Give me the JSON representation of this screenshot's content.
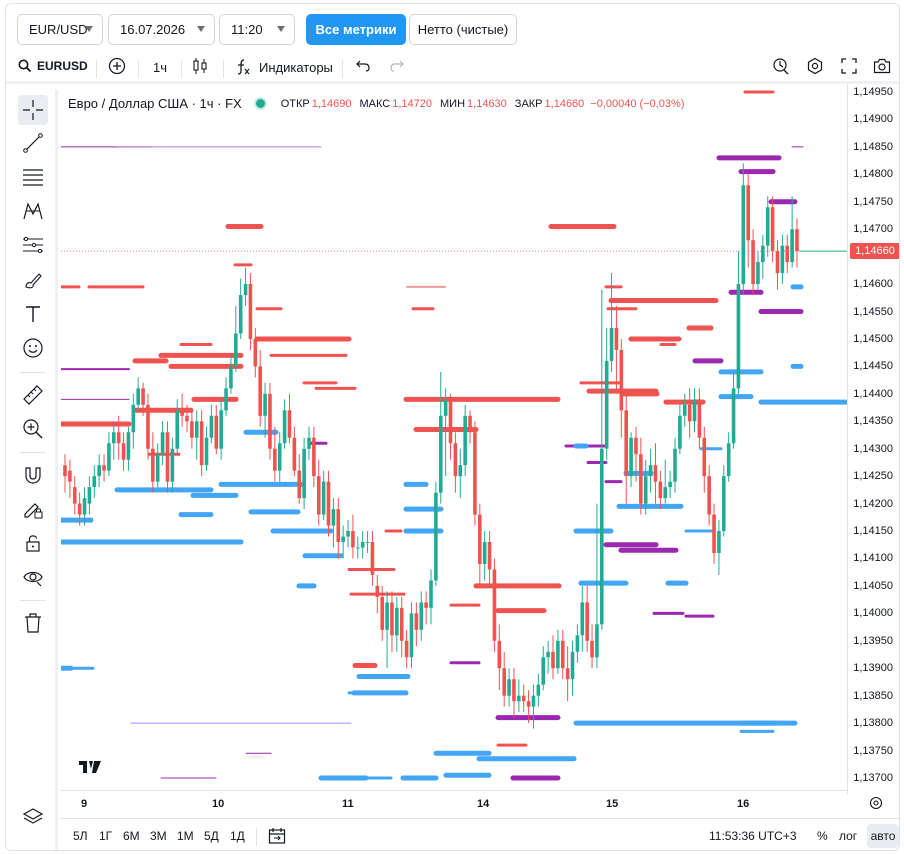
{
  "top": {
    "symbol_select": "EUR/USD",
    "date_select": "16.07.2026",
    "time_select": "11:20",
    "all_metrics_button": "Все метрики",
    "net_button": "Нетто (чистые)"
  },
  "toolbar": {
    "symbol": "EURUSD",
    "interval": "1ч",
    "indicators": "Индикаторы"
  },
  "legend": {
    "title": "Евро / Доллар США · 1ч · FX",
    "open_label": "ОТКР",
    "open": "1,14690",
    "high_label": "МАКС",
    "high": "1,14720",
    "low_label": "МИН",
    "low": "1,14630",
    "close_label": "ЗАКР",
    "close": "1,14660",
    "change": "−0,00040 (−0,03%)"
  },
  "price_axis": {
    "labels": [
      "1,14950",
      "1,14900",
      "1,14850",
      "1,14800",
      "1,14750",
      "1,14700",
      "1,14600",
      "1,14550",
      "1,14500",
      "1,14450",
      "1,14400",
      "1,14350",
      "1,14300",
      "1,14250",
      "1,14200",
      "1,14150",
      "1,14100",
      "1,14050",
      "1,14000",
      "1,13950",
      "1,13900",
      "1,13850",
      "1,13800",
      "1,13750",
      "1,13700"
    ],
    "last_price": "1,14660"
  },
  "time_axis": {
    "labels": [
      "9",
      "10",
      "11",
      "14",
      "15",
      "16"
    ]
  },
  "bottom": {
    "ranges": [
      "5Л",
      "1Г",
      "6М",
      "3М",
      "1М",
      "5Д",
      "1Д"
    ],
    "clock": "11:53:36 UTC+3",
    "percent": "%",
    "log": "лог",
    "auto": "авто"
  },
  "colors": {
    "up": "#22ab94",
    "down": "#ef5350",
    "blue": "#42a5f5",
    "purple": "#9c27b0",
    "accent": "#2196f3"
  },
  "icons": [
    "search-icon",
    "plus-circle-icon",
    "candles-icon",
    "function-icon",
    "undo-icon",
    "redo-icon",
    "alert-icon",
    "settings-icon",
    "fullscreen-icon",
    "camera-icon",
    "crosshair-icon",
    "trendline-icon",
    "horizontal-lines-icon",
    "pattern-icon",
    "fib-icon",
    "brush-icon",
    "text-icon",
    "emoji-icon",
    "ruler-icon",
    "zoom-icon",
    "magnet-icon",
    "lock-pencil-icon",
    "lock-icon",
    "eye-icon",
    "trash-icon",
    "layers-icon",
    "date-range-icon",
    "gear-icon"
  ]
}
